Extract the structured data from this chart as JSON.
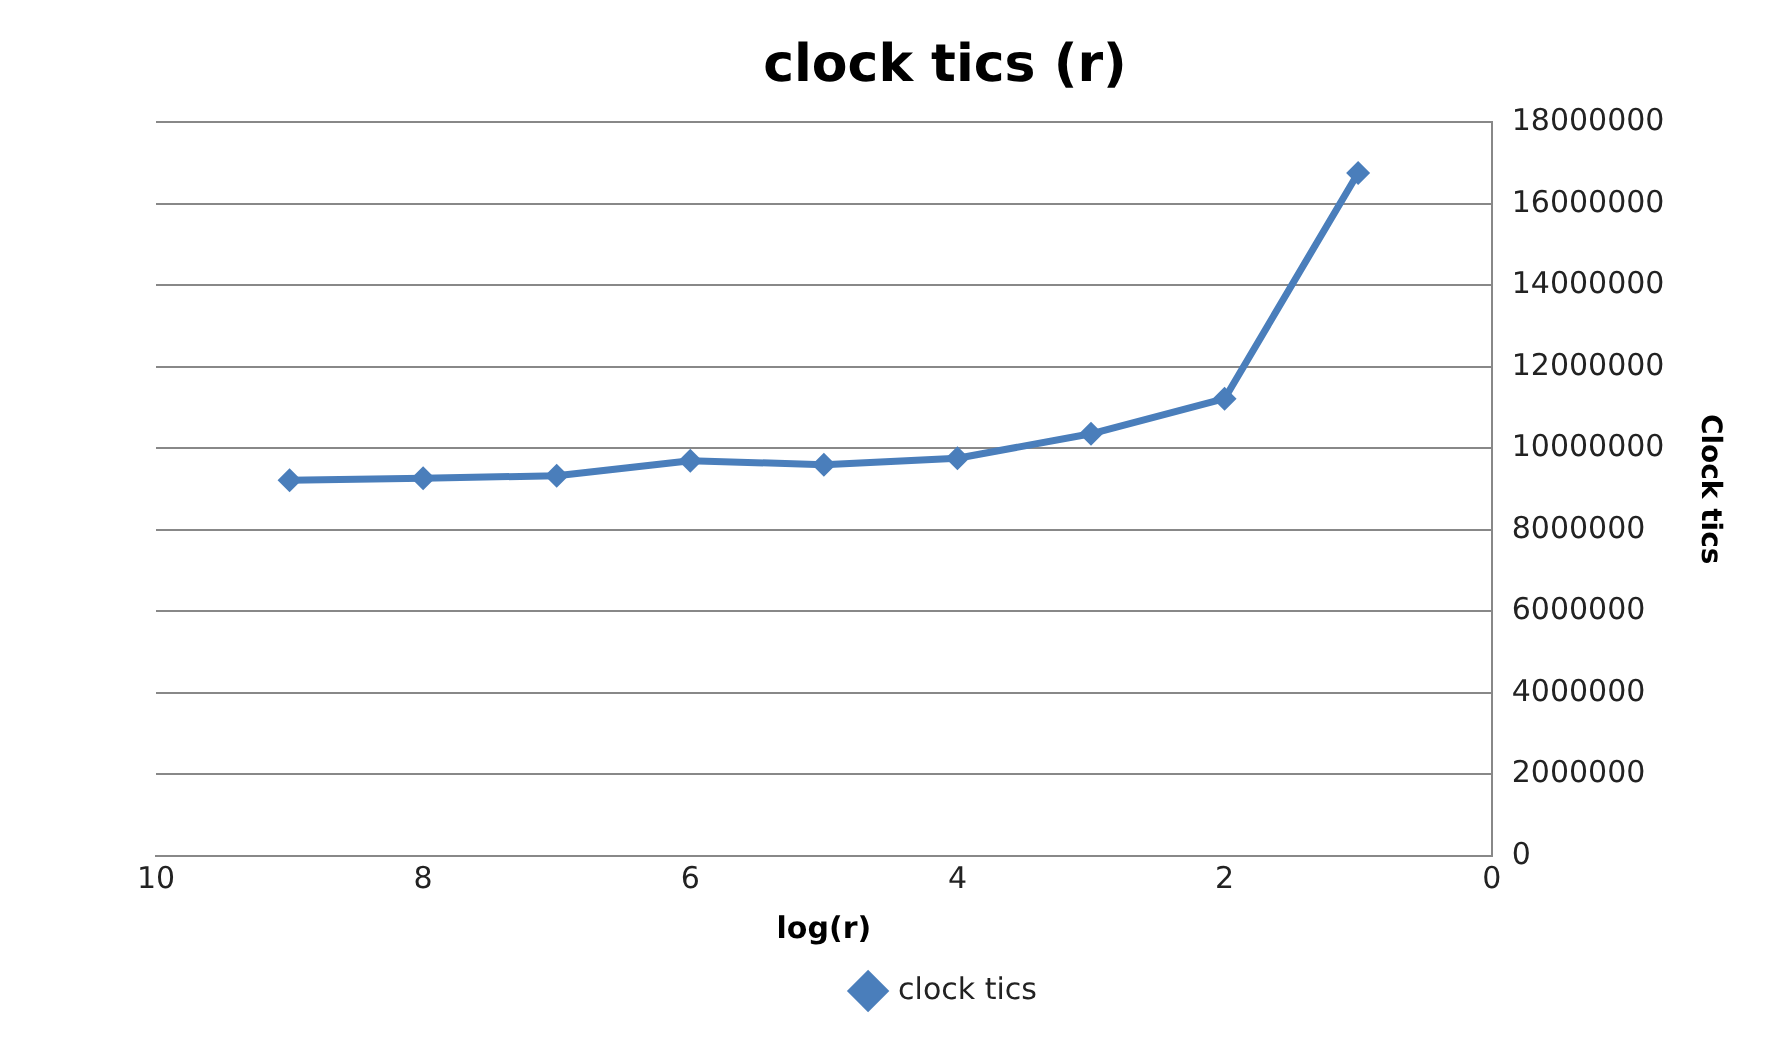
{
  "chart_data": {
    "type": "line",
    "title": "clock tics (r)",
    "xlabel": "log(r)",
    "ylabel": "Clock tics",
    "x": [
      9,
      8,
      7,
      6,
      5,
      4,
      3,
      2,
      1
    ],
    "series": [
      {
        "name": "clock tics",
        "color": "#4a7ebb",
        "values": [
          9220000,
          9270000,
          9330000,
          9700000,
          9600000,
          9760000,
          10360000,
          11220000,
          16760000
        ]
      }
    ],
    "xlim": [
      10,
      0
    ],
    "xticks": [
      10,
      8,
      6,
      4,
      2,
      0
    ],
    "ylim": [
      0,
      18000000
    ],
    "yticks": [
      0,
      2000000,
      4000000,
      6000000,
      8000000,
      10000000,
      12000000,
      14000000,
      16000000,
      18000000
    ],
    "grid": "y",
    "legend": "bottom",
    "marker": "diamond",
    "line_style": "solid"
  }
}
